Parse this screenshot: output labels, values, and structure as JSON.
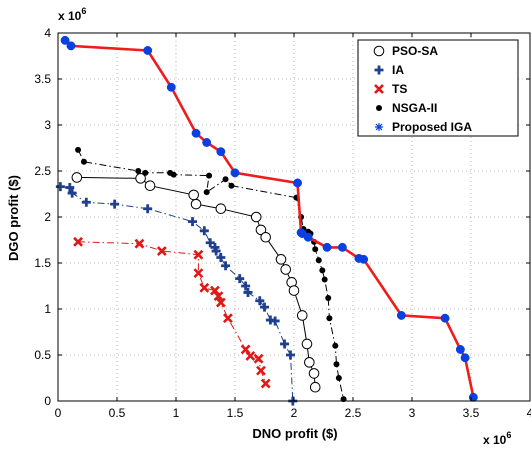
{
  "chart_data": {
    "type": "scatter",
    "xlabel": "DNO profit ($)",
    "ylabel": "DGO profit ($)",
    "x_multiplier": "x 10",
    "x_exponent": "6",
    "y_multiplier": "x 10",
    "y_exponent": "6",
    "xlim": [
      0,
      4000000
    ],
    "ylim": [
      0,
      4000000
    ],
    "xticks": [
      "0",
      "0.5",
      "1",
      "1.5",
      "2",
      "2.5",
      "3",
      "3.5",
      "4"
    ],
    "yticks": [
      "0",
      "0.5",
      "1",
      "1.5",
      "2",
      "2.5",
      "3",
      "3.5",
      "4"
    ],
    "grid": true,
    "legend_position": "top-right",
    "series": [
      {
        "name": "PSO-SA",
        "color": "#000000",
        "marker": "open-circle",
        "line": "solid",
        "points": [
          [
            160000,
            2430000
          ],
          [
            700000,
            2420000
          ],
          [
            780000,
            2340000
          ],
          [
            1150000,
            2240000
          ],
          [
            1170000,
            2140000
          ],
          [
            1380000,
            2090000
          ],
          [
            1680000,
            2000000
          ],
          [
            1720000,
            1860000
          ],
          [
            1760000,
            1780000
          ],
          [
            1890000,
            1540000
          ],
          [
            1930000,
            1430000
          ],
          [
            1980000,
            1290000
          ],
          [
            2000000,
            1200000
          ],
          [
            2070000,
            930000
          ],
          [
            2110000,
            620000
          ],
          [
            2130000,
            420000
          ],
          [
            2170000,
            300000
          ],
          [
            2180000,
            150000
          ]
        ]
      },
      {
        "name": "IA",
        "color": "#1f3f8f",
        "marker": "plus",
        "line": "dashdot",
        "points": [
          [
            20000,
            2330000
          ],
          [
            100000,
            2320000
          ],
          [
            120000,
            2260000
          ],
          [
            240000,
            2160000
          ],
          [
            480000,
            2140000
          ],
          [
            760000,
            2090000
          ],
          [
            1140000,
            1950000
          ],
          [
            1240000,
            1850000
          ],
          [
            1290000,
            1720000
          ],
          [
            1330000,
            1670000
          ],
          [
            1340000,
            1630000
          ],
          [
            1380000,
            1560000
          ],
          [
            1420000,
            1470000
          ],
          [
            1540000,
            1330000
          ],
          [
            1590000,
            1250000
          ],
          [
            1610000,
            1180000
          ],
          [
            1710000,
            1090000
          ],
          [
            1750000,
            1020000
          ],
          [
            1800000,
            880000
          ],
          [
            1840000,
            870000
          ],
          [
            1920000,
            620000
          ],
          [
            1970000,
            500000
          ],
          [
            1990000,
            0
          ]
        ]
      },
      {
        "name": "TS",
        "color": "#e01818",
        "marker": "x",
        "line": "dashdot",
        "points": [
          [
            170000,
            1730000
          ],
          [
            690000,
            1710000
          ],
          [
            880000,
            1630000
          ],
          [
            1190000,
            1590000
          ],
          [
            1190000,
            1390000
          ],
          [
            1240000,
            1230000
          ],
          [
            1330000,
            1200000
          ],
          [
            1360000,
            1140000
          ],
          [
            1380000,
            1070000
          ],
          [
            1440000,
            900000
          ],
          [
            1590000,
            560000
          ],
          [
            1630000,
            490000
          ],
          [
            1700000,
            460000
          ],
          [
            1720000,
            330000
          ],
          [
            1760000,
            190000
          ]
        ]
      },
      {
        "name": "NSGA-II",
        "color": "#000000",
        "marker": "dot",
        "line": "dashdot",
        "points": [
          [
            170000,
            2730000
          ],
          [
            220000,
            2600000
          ],
          [
            680000,
            2500000
          ],
          [
            740000,
            2480000
          ],
          [
            950000,
            2480000
          ],
          [
            980000,
            2460000
          ],
          [
            1280000,
            2450000
          ],
          [
            1260000,
            2270000
          ],
          [
            1420000,
            2410000
          ],
          [
            1470000,
            2340000
          ],
          [
            2020000,
            2210000
          ],
          [
            2060000,
            2000000
          ],
          [
            2080000,
            1870000
          ],
          [
            2120000,
            1840000
          ],
          [
            2140000,
            1820000
          ],
          [
            2170000,
            1730000
          ],
          [
            2180000,
            1650000
          ],
          [
            2210000,
            1530000
          ],
          [
            2240000,
            1420000
          ],
          [
            2260000,
            1320000
          ],
          [
            2290000,
            1120000
          ],
          [
            2300000,
            900000
          ],
          [
            2350000,
            600000
          ],
          [
            2360000,
            400000
          ],
          [
            2380000,
            250000
          ],
          [
            2420000,
            20000
          ]
        ]
      },
      {
        "name": "Proposed IGA",
        "color": "#0a3fe0",
        "marker": "filled-circle",
        "line": "solid",
        "line_color": "#ee1c1c",
        "points": [
          [
            60000,
            3920000
          ],
          [
            110000,
            3860000
          ],
          [
            760000,
            3810000
          ],
          [
            960000,
            3410000
          ],
          [
            1170000,
            2910000
          ],
          [
            1260000,
            2810000
          ],
          [
            1380000,
            2710000
          ],
          [
            1500000,
            2480000
          ],
          [
            2030000,
            2370000
          ],
          [
            2060000,
            1830000
          ],
          [
            2070000,
            1820000
          ],
          [
            2120000,
            1780000
          ],
          [
            2280000,
            1670000
          ],
          [
            2410000,
            1670000
          ],
          [
            2550000,
            1550000
          ],
          [
            2590000,
            1540000
          ],
          [
            2910000,
            930000
          ],
          [
            3280000,
            900000
          ],
          [
            3410000,
            560000
          ],
          [
            3450000,
            470000
          ],
          [
            3520000,
            40000
          ]
        ]
      }
    ]
  }
}
